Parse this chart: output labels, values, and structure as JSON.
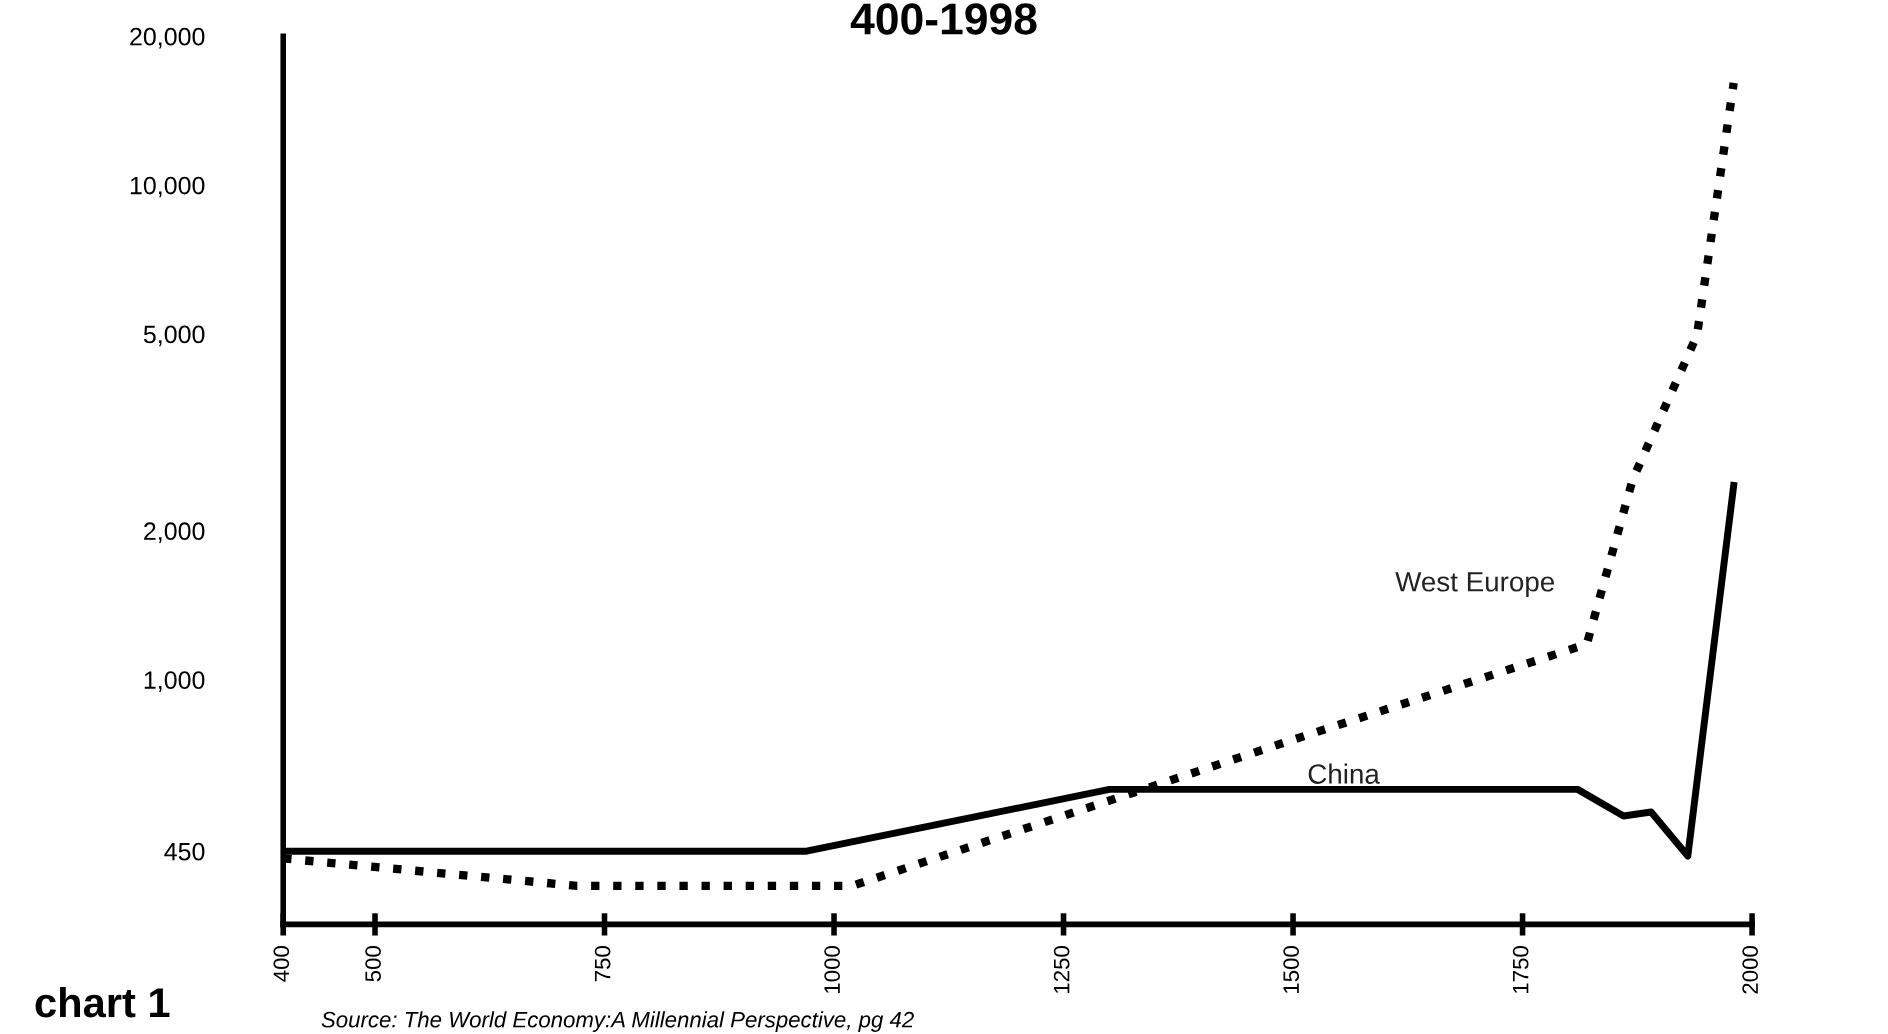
{
  "chart_data": {
    "type": "line",
    "title": "400-1998",
    "series": [
      {
        "name": "West Europe",
        "color": "#000000",
        "line_style": "dotted",
        "x": [
          400,
          720,
          1020,
          1500,
          1820,
          1870,
          1940,
          1980
        ],
        "values": [
          435,
          383,
          383,
          756,
          1180,
          2540,
          4970,
          16100
        ]
      },
      {
        "name": "China",
        "color": "#000000",
        "line_style": "solid",
        "x": [
          400,
          970,
          1300,
          1810,
          1860,
          1890,
          1930,
          1980
        ],
        "values": [
          450,
          450,
          600,
          600,
          530,
          540,
          440,
          2470
        ]
      }
    ],
    "log": "y",
    "xlim": [
      400,
      2000
    ],
    "ylim": [
      320,
      20000
    ],
    "xticks": [
      400,
      500,
      750,
      1000,
      1250,
      1500,
      1750,
      2000
    ],
    "yticks": [
      {
        "value": 450,
        "label": "450"
      },
      {
        "value": 1000,
        "label": "1,000"
      },
      {
        "value": 2000,
        "label": "2,000"
      },
      {
        "value": 5000,
        "label": "5,000"
      },
      {
        "value": 10000,
        "label": "10,000"
      },
      {
        "value": 20000,
        "label": "20,000"
      }
    ],
    "grid": false,
    "legend": false,
    "marker": "none",
    "annotations": [
      "chart 1",
      "Source: The World Economy:A Millennial Perspective, pg 42"
    ]
  }
}
